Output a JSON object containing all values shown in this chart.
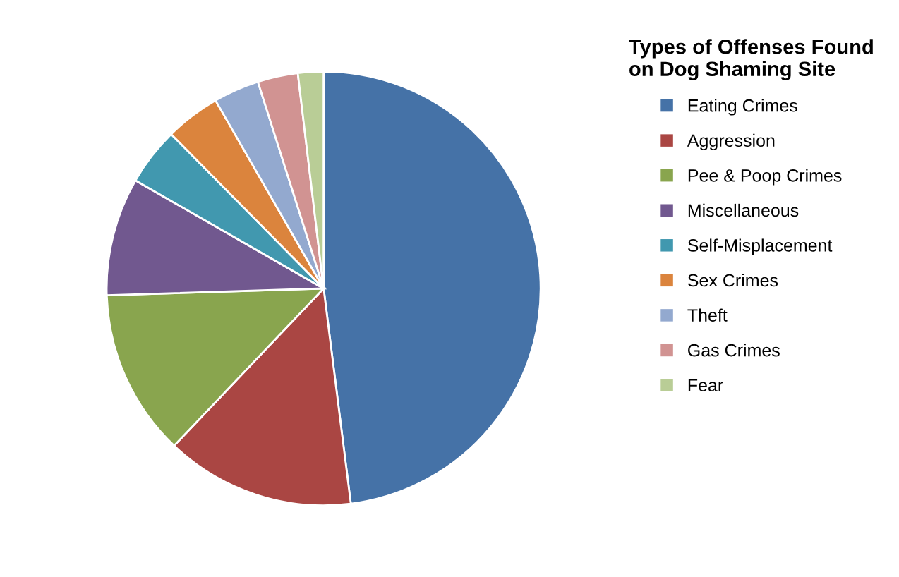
{
  "chart_data": {
    "type": "pie",
    "title": "Types of Offenses Found\non Dog Shaming Site",
    "categories": [
      "Eating Crimes",
      "Aggression",
      "Pee & Poop Crimes",
      "Miscellaneous",
      "Self-Misplacement",
      "Sex Crimes",
      "Theft",
      "Gas Crimes",
      "Fear"
    ],
    "values": [
      48.0,
      14.1,
      12.4,
      8.8,
      4.3,
      4.1,
      3.4,
      3.0,
      1.9
    ],
    "colors": [
      "#4572a7",
      "#aa4643",
      "#89a54e",
      "#71588f",
      "#4198af",
      "#db843d",
      "#93a9cf",
      "#d19392",
      "#b9cd96"
    ],
    "legend": "right"
  }
}
